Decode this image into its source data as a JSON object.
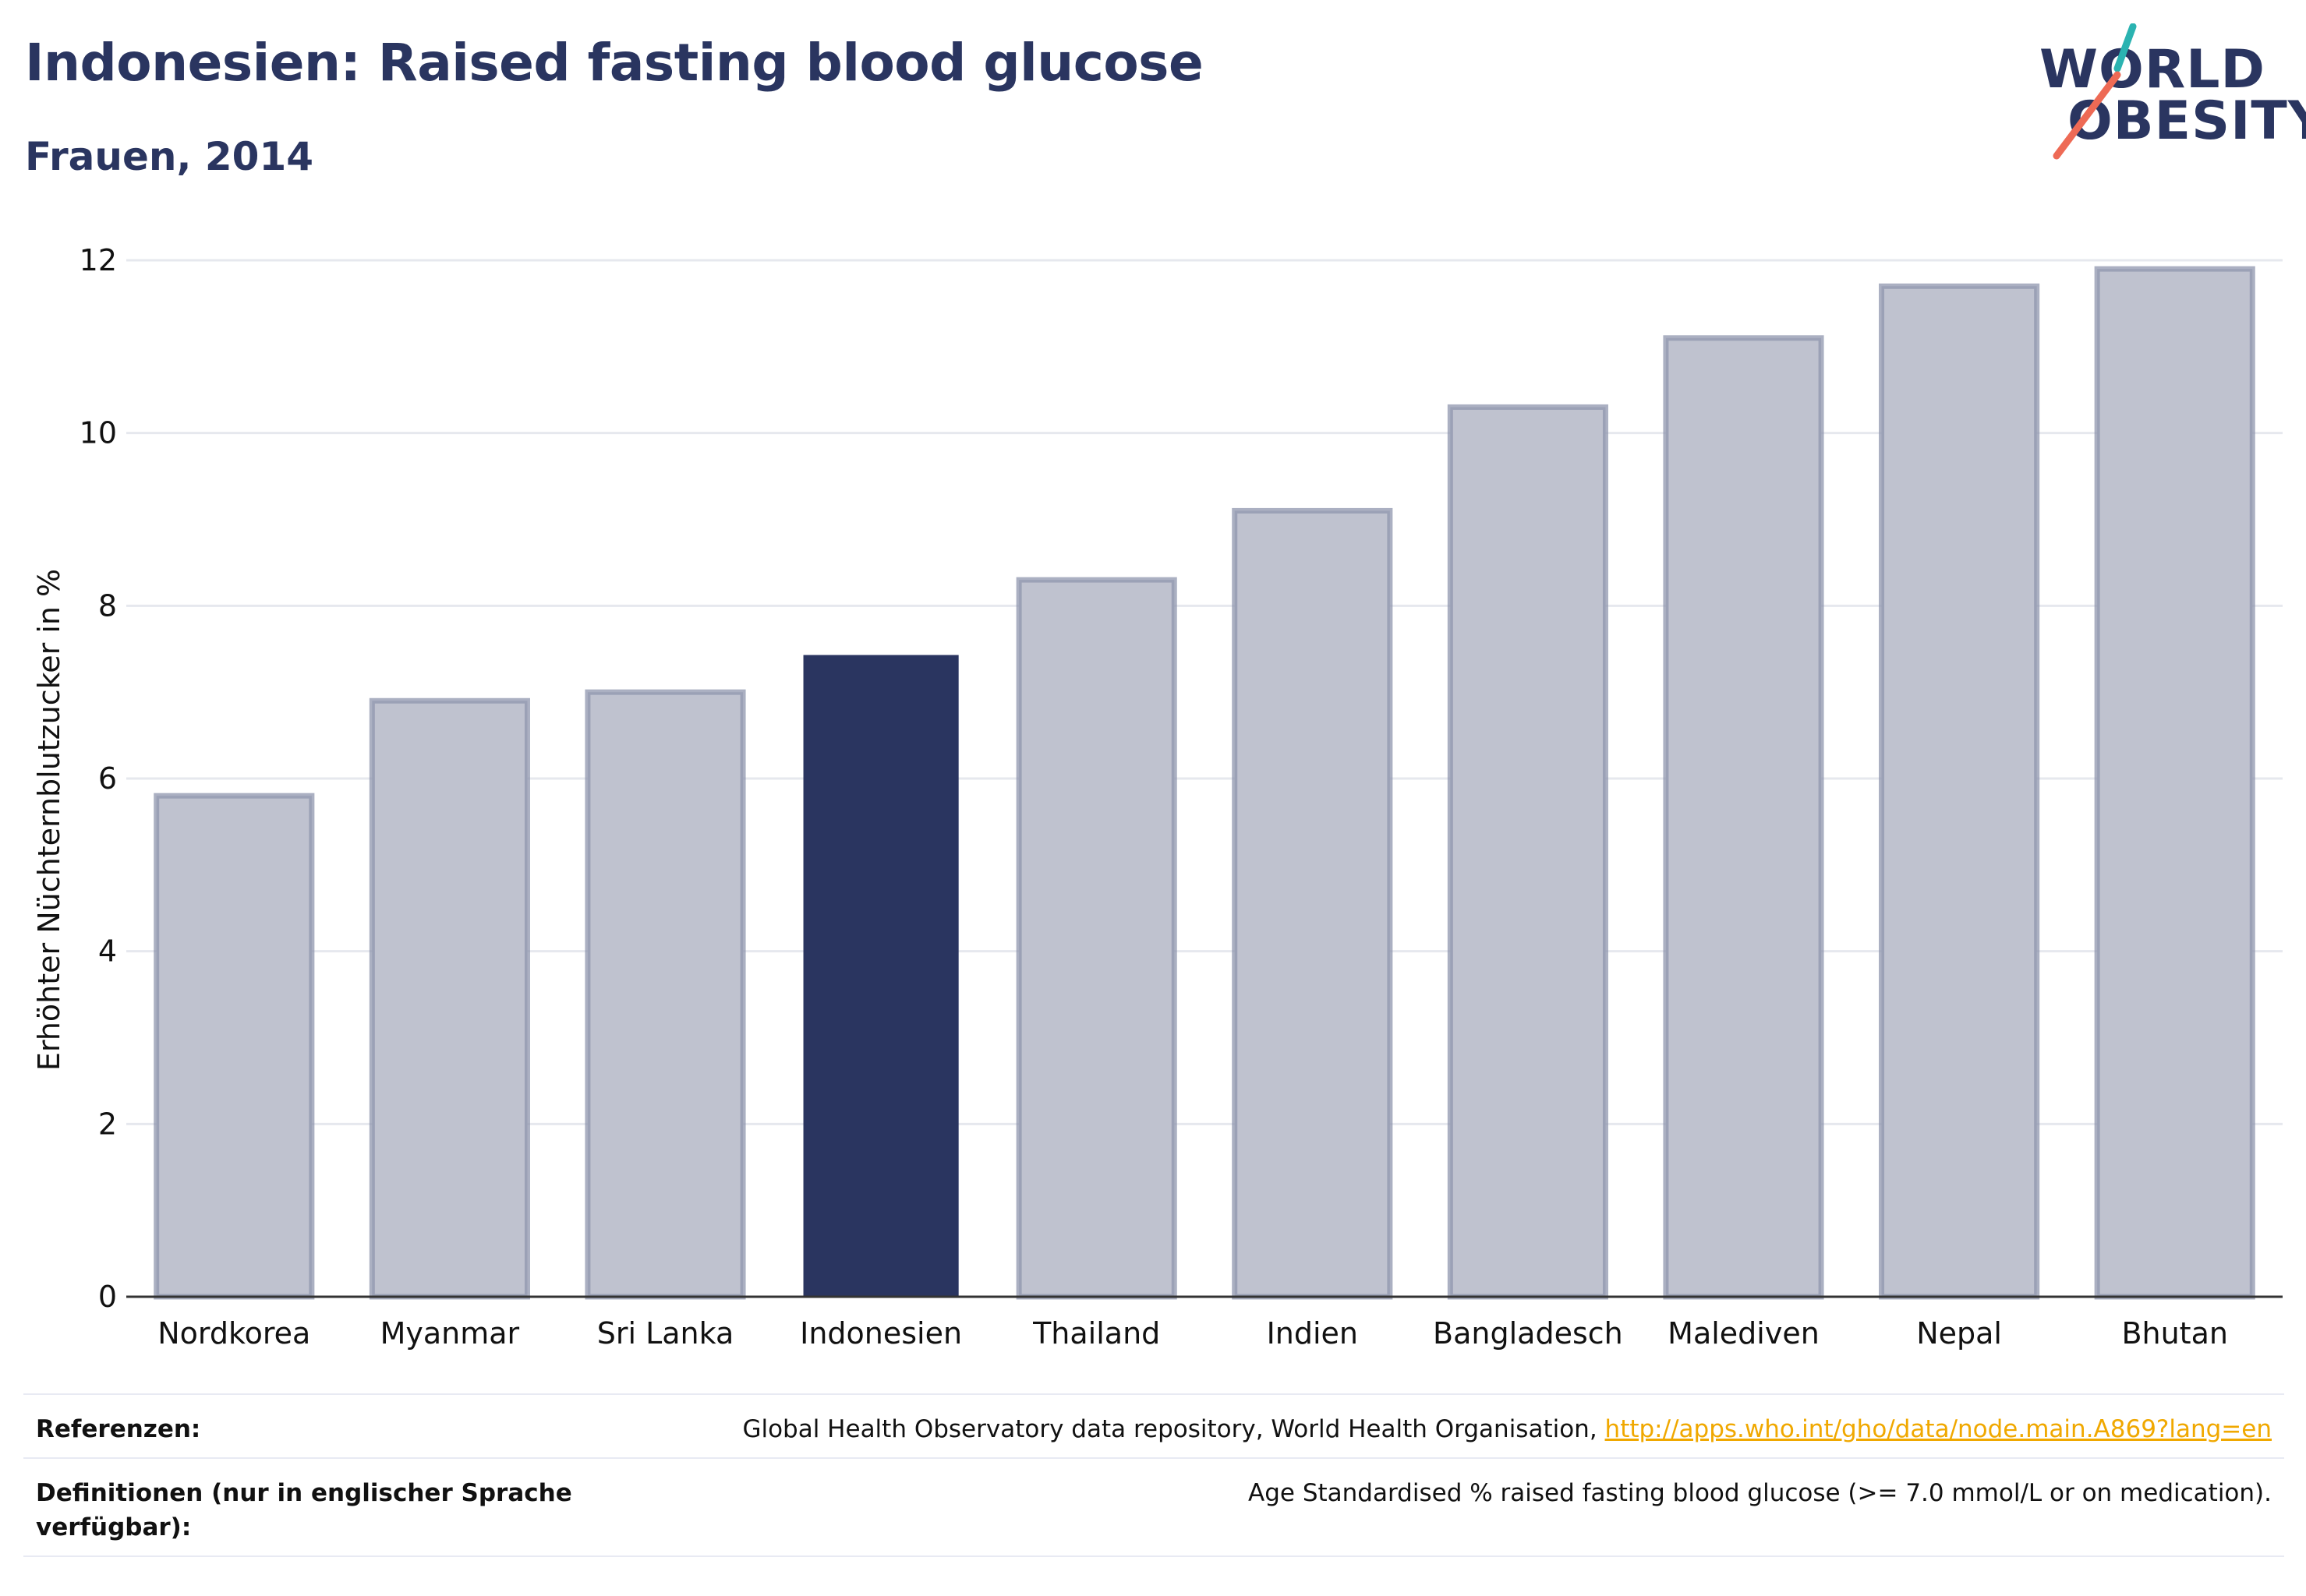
{
  "header": {
    "title": "Indonesien: Raised fasting blood glucose",
    "subtitle": "Frauen, 2014"
  },
  "logo": {
    "line1": "WORLD",
    "line2": "OBESITY"
  },
  "colors": {
    "highlight": "#2a3560",
    "bar_fill": "#bfc2cf",
    "bar_stroke": "#8f95ad",
    "grid": "#e6e8ee",
    "logo_teal": "#2bb3b1",
    "logo_coral": "#ee6a55",
    "link": "#f0a800"
  },
  "chart_data": {
    "type": "bar",
    "categories": [
      "Nordkorea",
      "Myanmar",
      "Sri Lanka",
      "Indonesien",
      "Thailand",
      "Indien",
      "Bangladesch",
      "Malediven",
      "Nepal",
      "Bhutan"
    ],
    "values": [
      5.8,
      6.9,
      7.0,
      7.43,
      8.3,
      9.1,
      10.3,
      11.1,
      11.7,
      11.9
    ],
    "highlight": "Indonesien",
    "ylabel": "Erhöhter Nüchternblutzucker in %",
    "xlabel": "",
    "ylim": [
      0,
      12
    ],
    "yticks": [
      0,
      2,
      4,
      6,
      8,
      10,
      12
    ],
    "grid": true
  },
  "footer": {
    "references_label": "Referenzen:",
    "references_text": "Global Health Observatory data repository, World Health Organisation, ",
    "references_link": "http://apps.who.int/gho/data/node.main.A869?lang=en",
    "definitions_label": "Definitionen (nur in englischer Sprache verfügbar):",
    "definitions_text": "Age Standardised % raised fasting blood glucose (>= 7.0 mmol/L or on medication)."
  }
}
